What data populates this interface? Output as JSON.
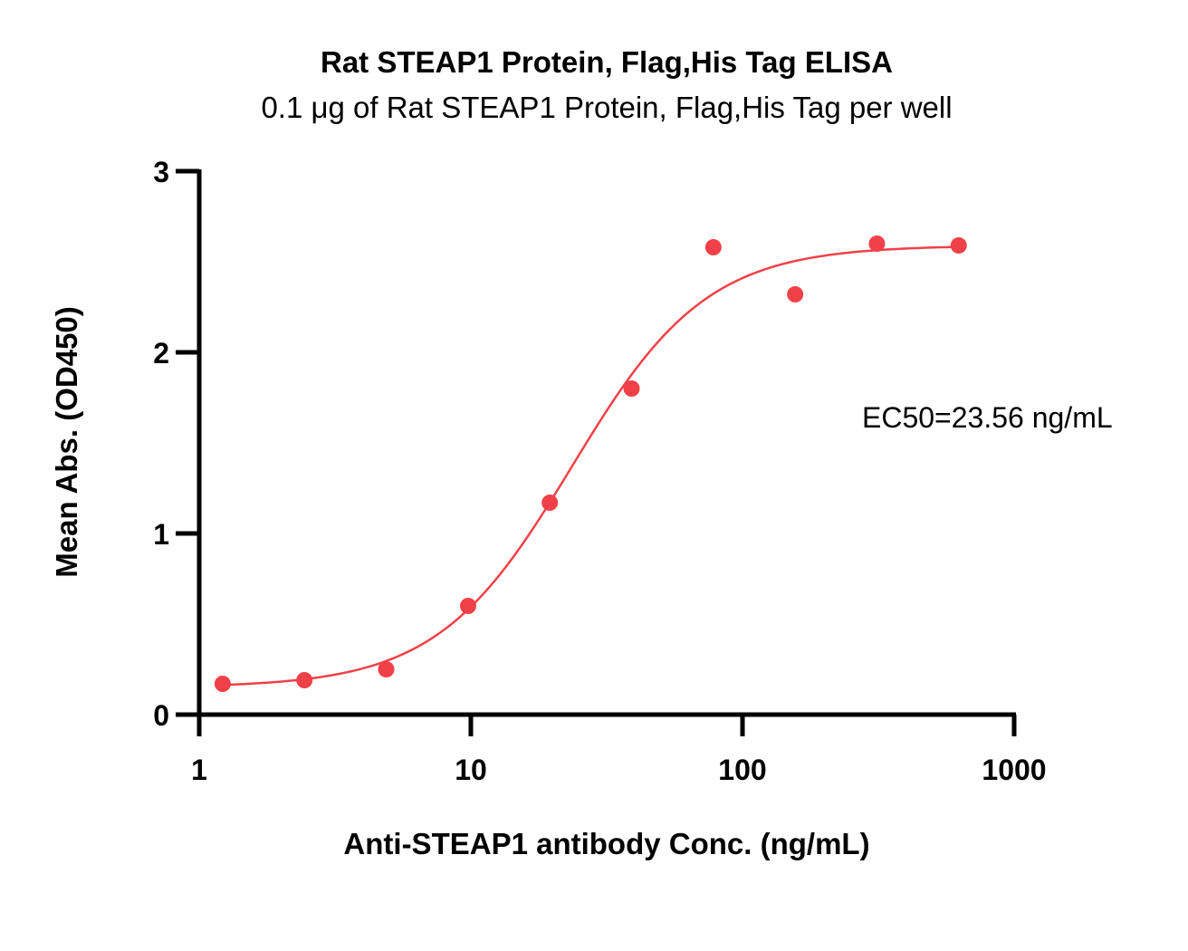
{
  "chart_data": {
    "type": "scatter",
    "title": "Rat STEAP1 Protein, Flag,His Tag ELISA",
    "subtitle": "0.1 μg of Rat STEAP1 Protein, Flag,His Tag per well",
    "xlabel": "Anti-STEAP1 antibody Conc. (ng/mL)",
    "ylabel": "Mean Abs. (OD450)",
    "x_scale": "log",
    "xlim": [
      1,
      1000
    ],
    "ylim": [
      0,
      3
    ],
    "x_ticks": [
      1,
      10,
      100,
      1000
    ],
    "x_tick_labels": [
      "1",
      "10",
      "100",
      "1000"
    ],
    "y_ticks": [
      0,
      1,
      2,
      3
    ],
    "y_tick_labels": [
      "0",
      "1",
      "2",
      "3"
    ],
    "grid": false,
    "legend": "none",
    "annotation": "EC50=23.56 ng/mL",
    "color": "#f04148",
    "series": [
      {
        "x": [
          1.22,
          2.44,
          4.88,
          9.77,
          19.53,
          39.06,
          78.13,
          156.25,
          312.5,
          625
        ],
        "y": [
          0.17,
          0.19,
          0.25,
          0.6,
          1.17,
          1.8,
          2.58,
          2.32,
          2.6,
          2.59
        ]
      }
    ],
    "fit": {
      "model": "4PL",
      "bottom": 0.15,
      "top": 2.59,
      "ec50": 23.56,
      "hill": 1.75
    }
  }
}
